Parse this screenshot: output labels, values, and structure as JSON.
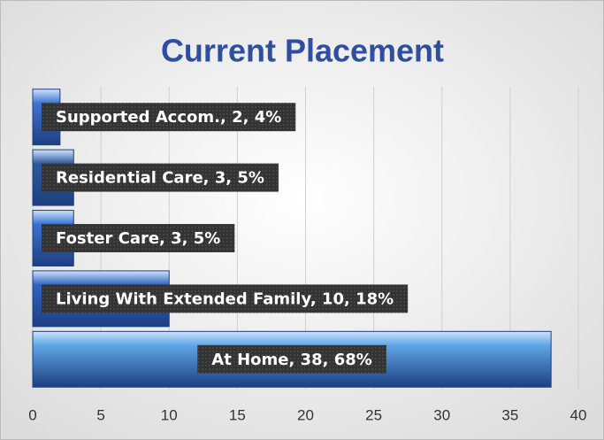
{
  "chart_data": {
    "type": "hbar",
    "title": "Current Placement",
    "categories": [
      "At Home",
      "Living With Extended Family",
      "Foster Care",
      "Residential Care",
      "Supported Accom."
    ],
    "values": [
      38,
      10,
      3,
      3,
      2
    ],
    "value_labels": [
      "At Home, 38, 68%",
      "Living With Extended Family, 10, 18%",
      "Foster Care, 3, 5%",
      "Residential Care, 3, 5%",
      "Supported Accom., 2, 4%"
    ],
    "colors": [
      "#5ea6e6",
      "#2f63c4",
      "#3a72d0",
      "#2c5a9a",
      "#3f74d4"
    ],
    "xlim": [
      0,
      40
    ],
    "xticks": [
      0,
      5,
      10,
      15,
      20,
      25,
      30,
      35,
      40
    ],
    "grid": true
  }
}
